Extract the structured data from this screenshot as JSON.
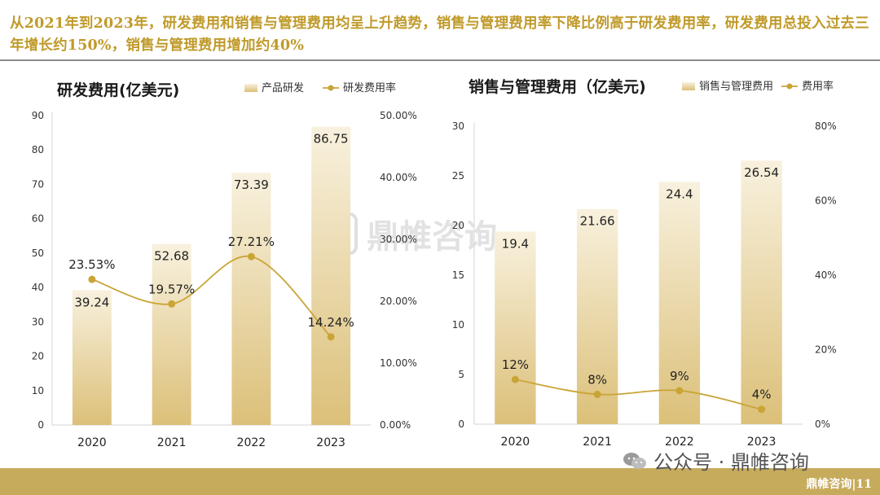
{
  "headline": "从2021年到2023年，研发费用和销售与管理费用均呈上升趋势，销售与管理费用率下降比例高于研发费用率，研发费用总投入过去三年增长约150%，销售与管理费用增加约40%",
  "watermark_text": "鼎帷咨询",
  "footer": {
    "source": "公众号 · 鼎帷咨询",
    "page": "鼎帷咨询|11"
  },
  "colors": {
    "gold": "#c9a536",
    "bar_top": "#f8f1de",
    "bar_bottom": "#dcc079",
    "headline": "#c09a2a"
  },
  "chart_data": [
    {
      "type": "bar",
      "title": "研发费用(亿美元)",
      "categories": [
        "2020",
        "2021",
        "2022",
        "2023"
      ],
      "series": [
        {
          "name": "产品研发",
          "type": "bar",
          "values": [
            39.24,
            52.68,
            73.39,
            86.75
          ],
          "labels": [
            "39.24",
            "52.68",
            "73.39",
            "86.75"
          ]
        },
        {
          "name": "研发费用率",
          "type": "line",
          "axis": "right",
          "values": [
            23.53,
            19.57,
            27.21,
            14.24
          ],
          "labels": [
            "23.53%",
            "19.57%",
            "27.21%",
            "14.24%"
          ]
        }
      ],
      "ylim": [
        0,
        90
      ],
      "yticks": [
        "0",
        "10",
        "20",
        "30",
        "40",
        "50",
        "60",
        "70",
        "80",
        "90"
      ],
      "y2lim": [
        0,
        50
      ],
      "y2ticks": [
        "0.00%",
        "10.00%",
        "20.00%",
        "30.00%",
        "40.00%",
        "50.00%"
      ],
      "legend": "top-right"
    },
    {
      "type": "bar",
      "title": "销售与管理费用（亿美元)",
      "categories": [
        "2020",
        "2021",
        "2022",
        "2023"
      ],
      "series": [
        {
          "name": "销售与管理费用",
          "type": "bar",
          "values": [
            19.4,
            21.66,
            24.4,
            26.54
          ],
          "labels": [
            "19.4",
            "21.66",
            "24.4",
            "26.54"
          ]
        },
        {
          "name": "费用率",
          "type": "line",
          "axis": "right",
          "values": [
            12,
            8,
            9,
            4
          ],
          "labels": [
            "12%",
            "8%",
            "9%",
            "4%"
          ]
        }
      ],
      "ylim": [
        0,
        30
      ],
      "yticks": [
        "0",
        "5",
        "10",
        "15",
        "20",
        "25",
        "30"
      ],
      "y2lim": [
        0,
        80
      ],
      "y2ticks": [
        "0%",
        "20%",
        "40%",
        "60%",
        "80%"
      ],
      "legend": "top-right"
    }
  ]
}
